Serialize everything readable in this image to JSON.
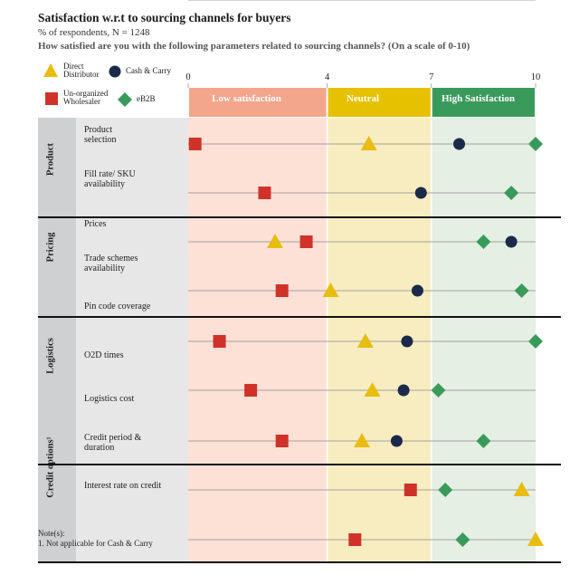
{
  "header": {
    "title": "Satisfaction w.r.t to sourcing channels for buyers",
    "subtitle": "% of respondents, N = 1248",
    "question": "How satisfied are you with the following parameters related to sourcing channels? (On a scale of 0-10)"
  },
  "legend": {
    "direct": "Direct\nDistributor",
    "cash": "Cash & Carry",
    "unorg": "Un-organized\nWholesaler",
    "eb2b": "eB2B"
  },
  "bands": {
    "low": "Low satisfaction",
    "neutral": "Neutral",
    "high": "High Satisfaction"
  },
  "note": {
    "heading": "Note(s):",
    "text": "1. Not applicable for Cash & Carry"
  },
  "colors": {
    "direct": "#e8bd10",
    "cash": "#1b2a4a",
    "unorg": "#d0322a",
    "eb2b": "#3a9a5c",
    "low_head": "#f4a68d",
    "neutral_head": "#e6c100",
    "high_head": "#3a9a5c",
    "low_bg": "#fde1d6",
    "neutral_bg": "#f8edc1",
    "high_bg": "#e5efe3",
    "group_bg": "#cfd0d2",
    "row_bg": "#e7e7e8"
  },
  "chart_data": {
    "type": "scatter",
    "title": "Satisfaction w.r.t to sourcing channels for buyers",
    "subtitle": "% of respondents, N = 1248",
    "xlim": [
      0,
      10
    ],
    "xticks": [
      0,
      4,
      7,
      10
    ],
    "series_names": [
      "Direct Distributor",
      "Cash & Carry",
      "Un-organized Wholesaler",
      "eB2B"
    ],
    "groups": [
      {
        "name": "Product",
        "rows": [
          {
            "label": "Product\nselection",
            "direct": 5.2,
            "cash": 7.8,
            "unorg": 0.2,
            "eb2b": 10.0
          },
          {
            "label": "Fill rate/ SKU\navailability",
            "direct": null,
            "cash": 6.7,
            "unorg": 2.2,
            "eb2b": 9.3
          }
        ]
      },
      {
        "name": "Pricing",
        "rows": [
          {
            "label": "Prices",
            "direct": 2.5,
            "cash": 9.3,
            "unorg": 3.4,
            "eb2b": 8.5
          },
          {
            "label": "Trade schemes\navailability",
            "direct": 4.1,
            "cash": 6.6,
            "unorg": 2.7,
            "eb2b": 9.6
          },
          {
            "label": "Pin code coverage",
            "direct": null,
            "cash": null,
            "unorg": null,
            "eb2b": null
          }
        ]
      },
      {
        "name": "Logistics",
        "rows": [
          {
            "label": "O2D times",
            "direct": 5.1,
            "cash": 6.3,
            "unorg": 0.9,
            "eb2b": 10.0
          },
          {
            "label": "Logistics cost",
            "direct": 5.3,
            "cash": 6.2,
            "unorg": 1.8,
            "eb2b": 7.2
          }
        ]
      },
      {
        "name": "Credit options¹",
        "rows": [
          {
            "label": "Credit period &\nduration",
            "direct": 5.0,
            "cash": 6.0,
            "unorg": 2.7,
            "eb2b": 8.5
          },
          {
            "label": "Interest rate on credit",
            "direct": 9.6,
            "cash": null,
            "unorg": 6.4,
            "eb2b": 7.4
          },
          {
            "label": "",
            "direct": 10.0,
            "cash": null,
            "unorg": 4.8,
            "eb2b": 7.9
          }
        ]
      }
    ]
  }
}
